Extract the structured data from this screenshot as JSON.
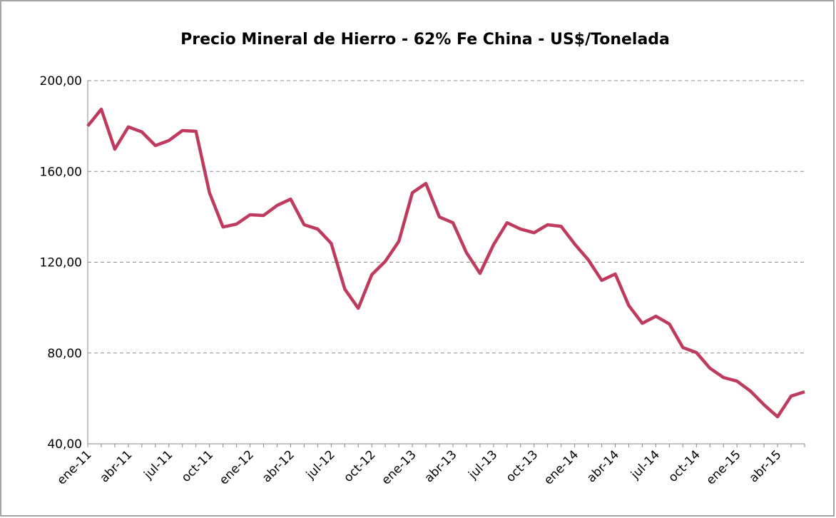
{
  "chart_data": {
    "type": "line",
    "title": "Precio Mineral de Hierro - 62% Fe China - US$/Tonelada",
    "categories": [
      "ene-11",
      null,
      null,
      "abr-11",
      null,
      null,
      "jul-11",
      null,
      null,
      "oct-11",
      null,
      null,
      "ene-12",
      null,
      null,
      "abr-12",
      null,
      null,
      "jul-12",
      null,
      null,
      "oct-12",
      null,
      null,
      "ene-13",
      null,
      null,
      "abr-13",
      null,
      null,
      "jul-13",
      null,
      null,
      "oct-13",
      null,
      null,
      "ene-14",
      null,
      null,
      "abr-14",
      null,
      null,
      "jul-14",
      null,
      null,
      "oct-14",
      null,
      null,
      "ene-15",
      null,
      null,
      "abr-15",
      null,
      null
    ],
    "values": [
      180,
      187.4,
      169.8,
      179.6,
      177.4,
      171.4,
      173.6,
      178,
      177.7,
      150.6,
      135.5,
      136.8,
      140.9,
      140.6,
      145,
      147.8,
      136.5,
      134.6,
      128.3,
      108.2,
      99.7,
      114.5,
      120.4,
      129.2,
      150.6,
      154.7,
      139.9,
      137.4,
      124.2,
      115.1,
      127.7,
      137.4,
      134.6,
      133,
      136.5,
      135.8,
      128,
      121.1,
      112,
      114.8,
      100.9,
      93.1,
      96.2,
      92.8,
      82.4,
      80.2,
      73.3,
      69.2,
      67.6,
      63.2,
      57.2,
      51.9,
      61,
      62.9
    ],
    "color": "#be3a5f",
    "ylim": [
      40,
      200
    ],
    "yticks": [
      {
        "value": 40,
        "label": "40,00"
      },
      {
        "value": 80,
        "label": "80,00"
      },
      {
        "value": 120,
        "label": "120,00"
      },
      {
        "value": 160,
        "label": "160,00"
      },
      {
        "value": 200,
        "label": "200,00"
      }
    ],
    "grid": true
  }
}
